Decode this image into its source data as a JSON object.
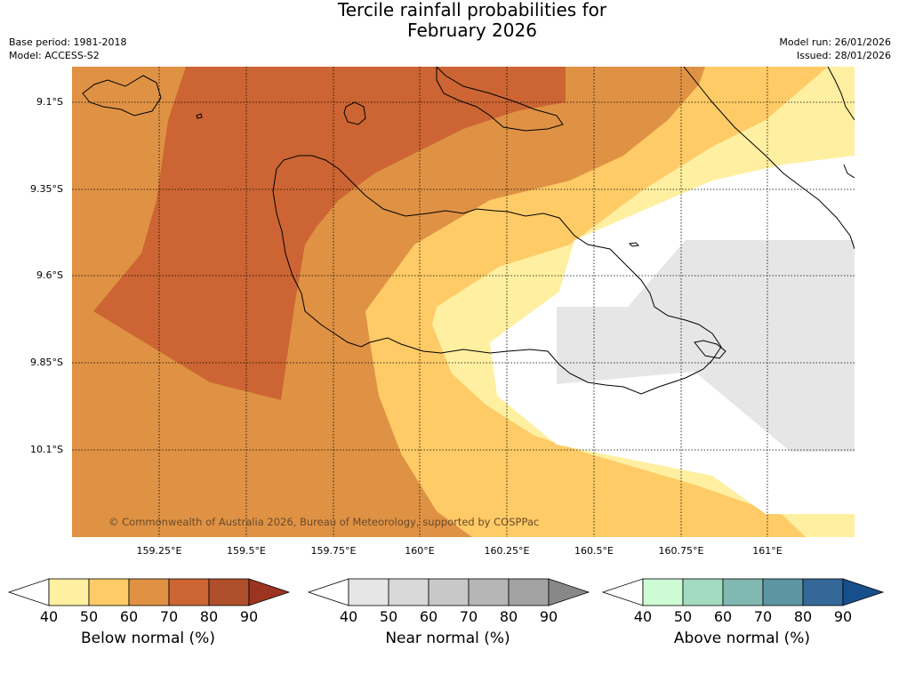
{
  "title": {
    "line1": "Tercile rainfall probabilities for",
    "line2": "February 2026"
  },
  "meta": {
    "base_period": "Base period: 1981-2018",
    "model": "Model: ACCESS-S2",
    "model_run": "Model run: 26/01/2026",
    "issued": "Issued: 28/01/2026"
  },
  "map": {
    "lat_labels": [
      "9.1°S",
      "9.35°S",
      "9.6°S",
      "9.85°S",
      "10.1°S"
    ],
    "lon_labels": [
      "159.25°E",
      "159.5°E",
      "159.75°E",
      "160°E",
      "160.25°E",
      "160.5°E",
      "160.75°E",
      "161°E"
    ],
    "copyright": "© Commonwealth of Australia 2026, Bureau of Meteorology, supported by COSPPac"
  },
  "legend": {
    "ticks": [
      "40",
      "50",
      "60",
      "70",
      "80",
      "90"
    ],
    "bars": [
      {
        "label": "Below normal (%)",
        "colors": [
          "#ffefa1",
          "#fecb66",
          "#df9244",
          "#cc6533",
          "#b04f2b",
          "#9c3421"
        ]
      },
      {
        "label": "Near normal (%)",
        "colors": [
          "#e6e6e6",
          "#d8d8d8",
          "#c8c8c8",
          "#b6b6b6",
          "#a2a2a2",
          "#888888"
        ]
      },
      {
        "label": "Above normal (%)",
        "colors": [
          "#ccfbd4",
          "#a3dbc0",
          "#82b8b2",
          "#5e95a2",
          "#336899",
          "#174f8c"
        ]
      }
    ]
  },
  "colors": {
    "below_40": "#ffefa1",
    "below_50": "#fecb66",
    "below_60": "#df9244",
    "below_70": "#cc6533",
    "near_40": "#e6e6e6",
    "neutral": "#ffffff"
  }
}
